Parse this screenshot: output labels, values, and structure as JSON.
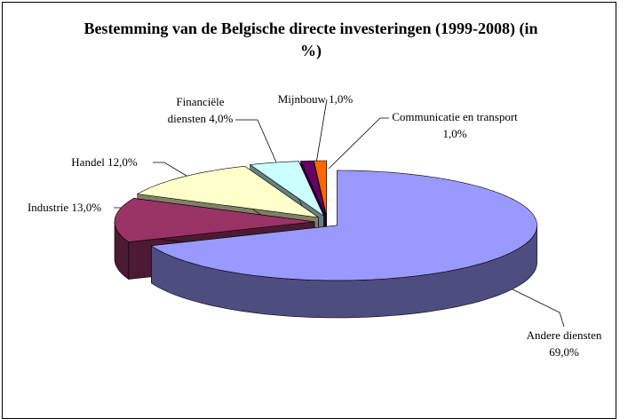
{
  "chart_data": {
    "type": "pie3d",
    "title": "Bestemming van de Belgische directe investeringen (1999-2008) (in %)",
    "categories": [
      "Andere diensten",
      "Industrie",
      "Handel",
      "Financiële diensten",
      "Mijnbouw",
      "Communicatie en transport"
    ],
    "values": [
      69,
      13,
      12,
      4,
      1,
      1
    ],
    "value_labels": [
      "69,0%",
      "13,0%",
      "12,0%",
      "4,0%",
      "1,0%",
      "1,0%"
    ],
    "colors": [
      "#9999ff",
      "#993366",
      "#ffffcc",
      "#ccffff",
      "#660066",
      "#ff6600"
    ]
  }
}
